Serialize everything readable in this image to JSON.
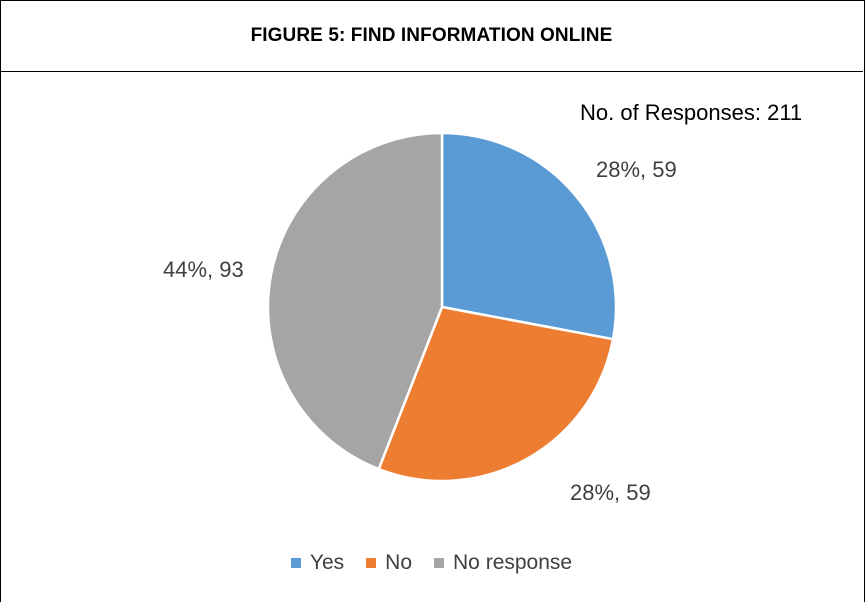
{
  "chart_data": {
    "type": "pie",
    "title": "FIGURE 5: FIND INFORMATION ONLINE",
    "note": "No. of Responses: 211",
    "categories": [
      "Yes",
      "No",
      "No response"
    ],
    "values": [
      59,
      59,
      93
    ],
    "percent_labels": [
      "28%, 59",
      "28%, 59",
      "44%, 93"
    ],
    "colors": [
      "#5B9BD5",
      "#ED7D31",
      "#A5A5A5"
    ],
    "legend_position": "bottom",
    "start_angle_deg": 0,
    "direction": "clockwise"
  }
}
